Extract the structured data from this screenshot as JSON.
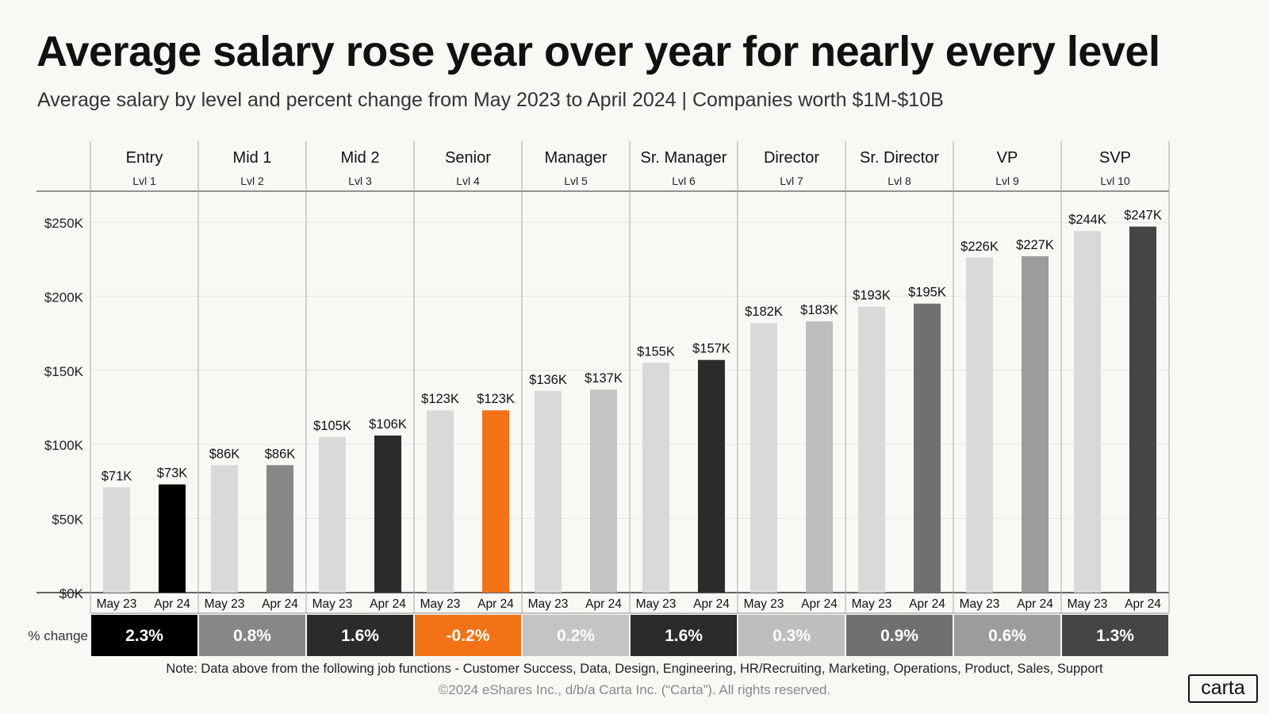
{
  "title": "Average salary rose year over year for nearly every level",
  "subtitle": "Average salary by level and percent change from May 2023 to April 2024  |  Companies worth $1M-$10B",
  "note": "Note:  Data above from the following job functions - Customer Success, Data, Design, Engineering, HR/Recruiting, Marketing, Operations, Product,  Sales, Support",
  "copyright": "©2024 eShares Inc., d/b/a Carta Inc. (“Carta”). All rights reserved.",
  "logo": "carta",
  "chart_data": {
    "type": "bar",
    "title": "Average salary rose year over year for nearly every level",
    "subtitle": "Average salary by level and percent change from May 2023 to April 2024  |  Companies worth $1M-$10B",
    "ylim": [
      0,
      270
    ],
    "y_ticks": [
      0,
      50,
      100,
      150,
      200,
      250
    ],
    "y_tick_labels": [
      "$0K",
      "$50K",
      "$100K",
      "$150K",
      "$200K",
      "$250K"
    ],
    "bar_labels": [
      "May 23",
      "Apr 24"
    ],
    "change_row_label": "% change",
    "grid": true,
    "groups": [
      {
        "name": "Entry",
        "level": "Lvl 1",
        "may23": 71,
        "apr24": 73,
        "may23_label": "$71K",
        "apr24_label": "$73K",
        "change": "2.3%",
        "apr24_color": "#000000",
        "change_color": "#000000"
      },
      {
        "name": "Mid 1",
        "level": "Lvl 2",
        "may23": 86,
        "apr24": 86,
        "may23_label": "$86K",
        "apr24_label": "$86K",
        "change": "0.8%",
        "apr24_color": "#878787",
        "change_color": "#878787"
      },
      {
        "name": "Mid 2",
        "level": "Lvl 3",
        "may23": 105,
        "apr24": 106,
        "may23_label": "$105K",
        "apr24_label": "$106K",
        "change": "1.6%",
        "apr24_color": "#2b2b2b",
        "change_color": "#2b2b2b"
      },
      {
        "name": "Senior",
        "level": "Lvl 4",
        "may23": 123,
        "apr24": 123,
        "may23_label": "$123K",
        "apr24_label": "$123K",
        "change": "-0.2%",
        "apr24_color": "#f47216",
        "change_color": "#f47216"
      },
      {
        "name": "Manager",
        "level": "Lvl 5",
        "may23": 136,
        "apr24": 137,
        "may23_label": "$136K",
        "apr24_label": "$137K",
        "change": "0.2%",
        "apr24_color": "#c4c4c4",
        "change_color": "#c4c4c4"
      },
      {
        "name": "Sr. Manager",
        "level": "Lvl 6",
        "may23": 155,
        "apr24": 157,
        "may23_label": "$155K",
        "apr24_label": "$157K",
        "change": "1.6%",
        "apr24_color": "#2b2b2b",
        "change_color": "#2b2b2b"
      },
      {
        "name": "Director",
        "level": "Lvl 7",
        "may23": 182,
        "apr24": 183,
        "may23_label": "$182K",
        "apr24_label": "$183K",
        "change": "0.3%",
        "apr24_color": "#bebebe",
        "change_color": "#bebebe"
      },
      {
        "name": "Sr. Director",
        "level": "Lvl 8",
        "may23": 193,
        "apr24": 195,
        "may23_label": "$193K",
        "apr24_label": "$195K",
        "change": "0.9%",
        "apr24_color": "#707070",
        "change_color": "#707070"
      },
      {
        "name": "VP",
        "level": "Lvl 9",
        "may23": 226,
        "apr24": 227,
        "may23_label": "$226K",
        "apr24_label": "$227K",
        "change": "0.6%",
        "apr24_color": "#9c9c9c",
        "change_color": "#9c9c9c"
      },
      {
        "name": "SVP",
        "level": "Lvl 10",
        "may23": 244,
        "apr24": 247,
        "may23_label": "$244K",
        "apr24_label": "$247K",
        "change": "1.3%",
        "apr24_color": "#454545",
        "change_color": "#454545"
      }
    ],
    "colors": {
      "may23": "#d9d9d9",
      "grid": "#e6e4e0",
      "divider": "#a8a8a8",
      "axis": "#333333"
    }
  }
}
